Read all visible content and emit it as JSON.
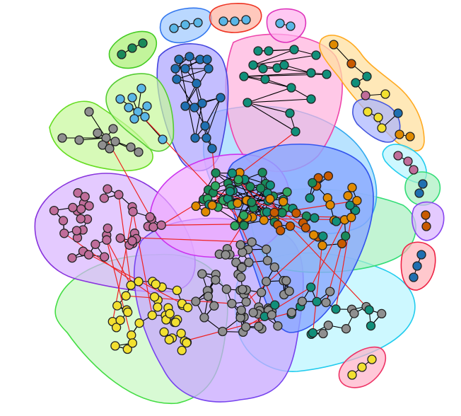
{
  "diagram": {
    "type": "network-community-graph",
    "node_colors": {
      "dark-green": "#1a8a5a",
      "teal": "#118f7a",
      "orange": "#e08a00",
      "dark-orange": "#c85a00",
      "blue": "#1f6fb0",
      "sky": "#5ab6e6",
      "pink": "#c06d9a",
      "yellow": "#f2e030",
      "gray": "#8f8f8f",
      "green": "#2fa860"
    },
    "edge_colors": {
      "intra": "#000000",
      "inter": "#ee2222"
    },
    "communities": [
      {
        "name": "small-green-top-left",
        "color": "#a8f070",
        "stroke": "#44cc22"
      },
      {
        "name": "blue-top-pill",
        "color": "#9cc8ff",
        "stroke": "#3377ee"
      },
      {
        "name": "red-top-pill",
        "color": "#ffb0a0",
        "stroke": "#ee3322"
      },
      {
        "name": "magenta-top-pill",
        "color": "#ffb0ee",
        "stroke": "#dd33bb"
      },
      {
        "name": "lime-left",
        "color": "#c6f89a",
        "stroke": "#66dd22"
      },
      {
        "name": "light-green-sky",
        "color": "#c6f89a",
        "stroke": "#55cc33"
      },
      {
        "name": "blue-top",
        "color": "#b0a8ff",
        "stroke": "#4444dd"
      },
      {
        "name": "pink-top",
        "color": "#ffb0dd",
        "stroke": "#ee44aa"
      },
      {
        "name": "cyan-center",
        "color": "#a8dcff",
        "stroke": "#33aaee"
      },
      {
        "name": "blue-center",
        "color": "#8aa8ff",
        "stroke": "#3355ee"
      },
      {
        "name": "magenta-center",
        "color": "#f0a8ff",
        "stroke": "#cc33ee"
      },
      {
        "name": "green-right",
        "color": "#a8f0c0",
        "stroke": "#33dd77"
      },
      {
        "name": "purple-left",
        "color": "#d8b4ff",
        "stroke": "#8833dd"
      },
      {
        "name": "green-bottom-left",
        "color": "#b8f5b0",
        "stroke": "#44dd44"
      },
      {
        "name": "cyan-bottom-right",
        "color": "#b8f5ff",
        "stroke": "#22ccee"
      },
      {
        "name": "violet-bottom",
        "color": "#c8a8ff",
        "stroke": "#7744ee"
      },
      {
        "name": "right-chain-pills",
        "color": "#ffe0a0",
        "stroke": "#ffaa22"
      },
      {
        "name": "red-right-pill",
        "color": "#ffb0b8",
        "stroke": "#ee2244"
      },
      {
        "name": "pink-bottom-pill",
        "color": "#ffb0c8",
        "stroke": "#ee3366"
      },
      {
        "name": "purple-right-pill",
        "color": "#d8b4ff",
        "stroke": "#8844ee"
      }
    ]
  }
}
